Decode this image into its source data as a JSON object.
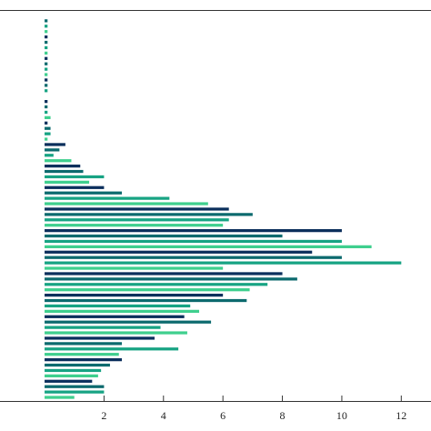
{
  "chart_data": {
    "type": "bar",
    "orientation": "horizontal",
    "title": "",
    "xlabel": "",
    "ylabel": "",
    "xlim": [
      -1.5,
      13
    ],
    "x_ticks": [
      2,
      4,
      6,
      8,
      10,
      12
    ],
    "x_tick_labels": [
      "2",
      "4",
      "6",
      "8",
      "10",
      "12"
    ],
    "grid": false,
    "legend": "none",
    "color_scale": [
      "#0b2f5c",
      "#0c6a6e",
      "#17a383",
      "#3fcf8e"
    ],
    "values": [
      0.0,
      0.1,
      0.1,
      0.1,
      0.1,
      0.1,
      0.1,
      0.1,
      0.1,
      0.1,
      0.1,
      0.1,
      0.1,
      0.1,
      0.1,
      0.0,
      0.1,
      0.1,
      0.1,
      0.2,
      0.1,
      0.2,
      0.2,
      0.1,
      0.7,
      0.5,
      0.3,
      0.9,
      1.2,
      1.3,
      2.0,
      1.5,
      2.0,
      2.6,
      4.2,
      5.5,
      6.2,
      7.0,
      6.2,
      6.0,
      10.0,
      8.0,
      10.0,
      11.0,
      9.0,
      10.0,
      12.0,
      6.0,
      8.0,
      8.5,
      7.5,
      6.9,
      6.0,
      6.8,
      4.9,
      5.2,
      4.7,
      5.6,
      3.9,
      4.8,
      3.7,
      2.6,
      4.5,
      2.5,
      2.6,
      2.2,
      1.9,
      1.8,
      1.6,
      2.0,
      2.0,
      1.0
    ]
  }
}
